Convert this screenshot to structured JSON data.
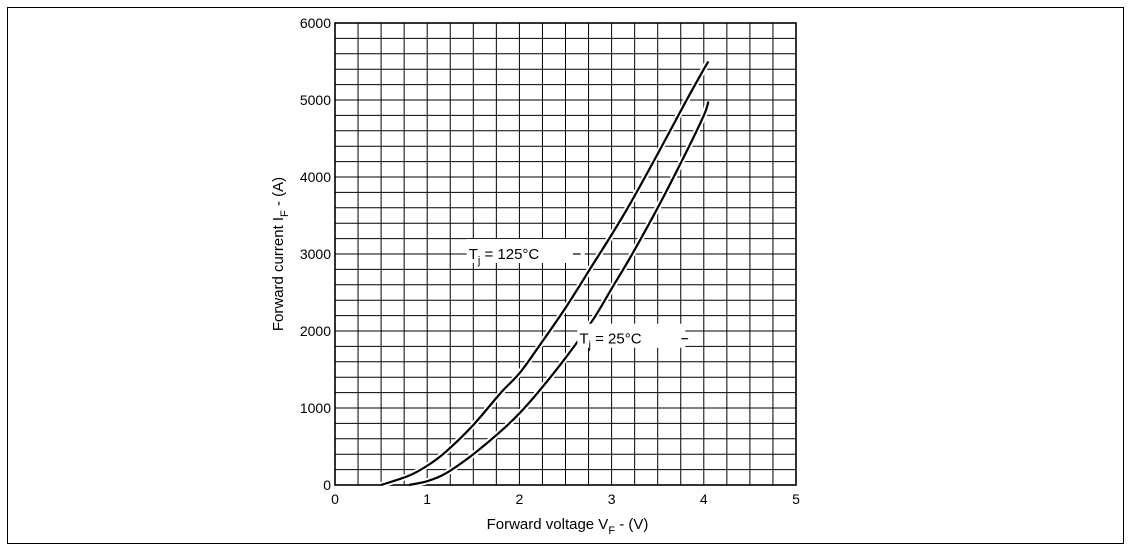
{
  "chart_data": {
    "type": "line",
    "xlabel": "Forward voltage V",
    "xlabel_sub": "F",
    "xlabel_suffix": " - (V)",
    "ylabel": "Forward current I",
    "ylabel_sub": "F",
    "ylabel_suffix": " - (A)",
    "xlim": [
      0,
      5
    ],
    "ylim": [
      0,
      6000
    ],
    "x_ticks": [
      "0",
      "1",
      "2",
      "3",
      "4",
      "5"
    ],
    "y_ticks": [
      "0",
      "1000",
      "2000",
      "3000",
      "4000",
      "5000",
      "6000"
    ],
    "grid": true,
    "grid_minor_x_per_major": 4,
    "grid_minor_y_per_major": 5,
    "series": [
      {
        "label_prefix": "T",
        "label_sub": "j",
        "label_suffix": " = 125°C",
        "x": [
          0.5,
          0.8,
          1.0,
          1.2,
          1.5,
          1.8,
          2.0,
          2.2,
          2.5,
          2.8,
          3.0,
          3.2,
          3.5,
          3.8,
          4.0,
          4.05
        ],
        "y": [
          0,
          120,
          250,
          430,
          780,
          1200,
          1450,
          1780,
          2300,
          2870,
          3250,
          3650,
          4300,
          4970,
          5400,
          5500
        ]
      },
      {
        "label_prefix": "T",
        "label_sub": "j",
        "label_suffix": " = 25°C",
        "x": [
          0.8,
          1.0,
          1.2,
          1.5,
          1.8,
          2.0,
          2.2,
          2.5,
          2.8,
          3.0,
          3.2,
          3.5,
          3.8,
          4.0,
          4.05
        ],
        "y": [
          0,
          50,
          150,
          400,
          700,
          930,
          1200,
          1650,
          2150,
          2550,
          2950,
          3600,
          4300,
          4800,
          4980
        ]
      }
    ]
  }
}
